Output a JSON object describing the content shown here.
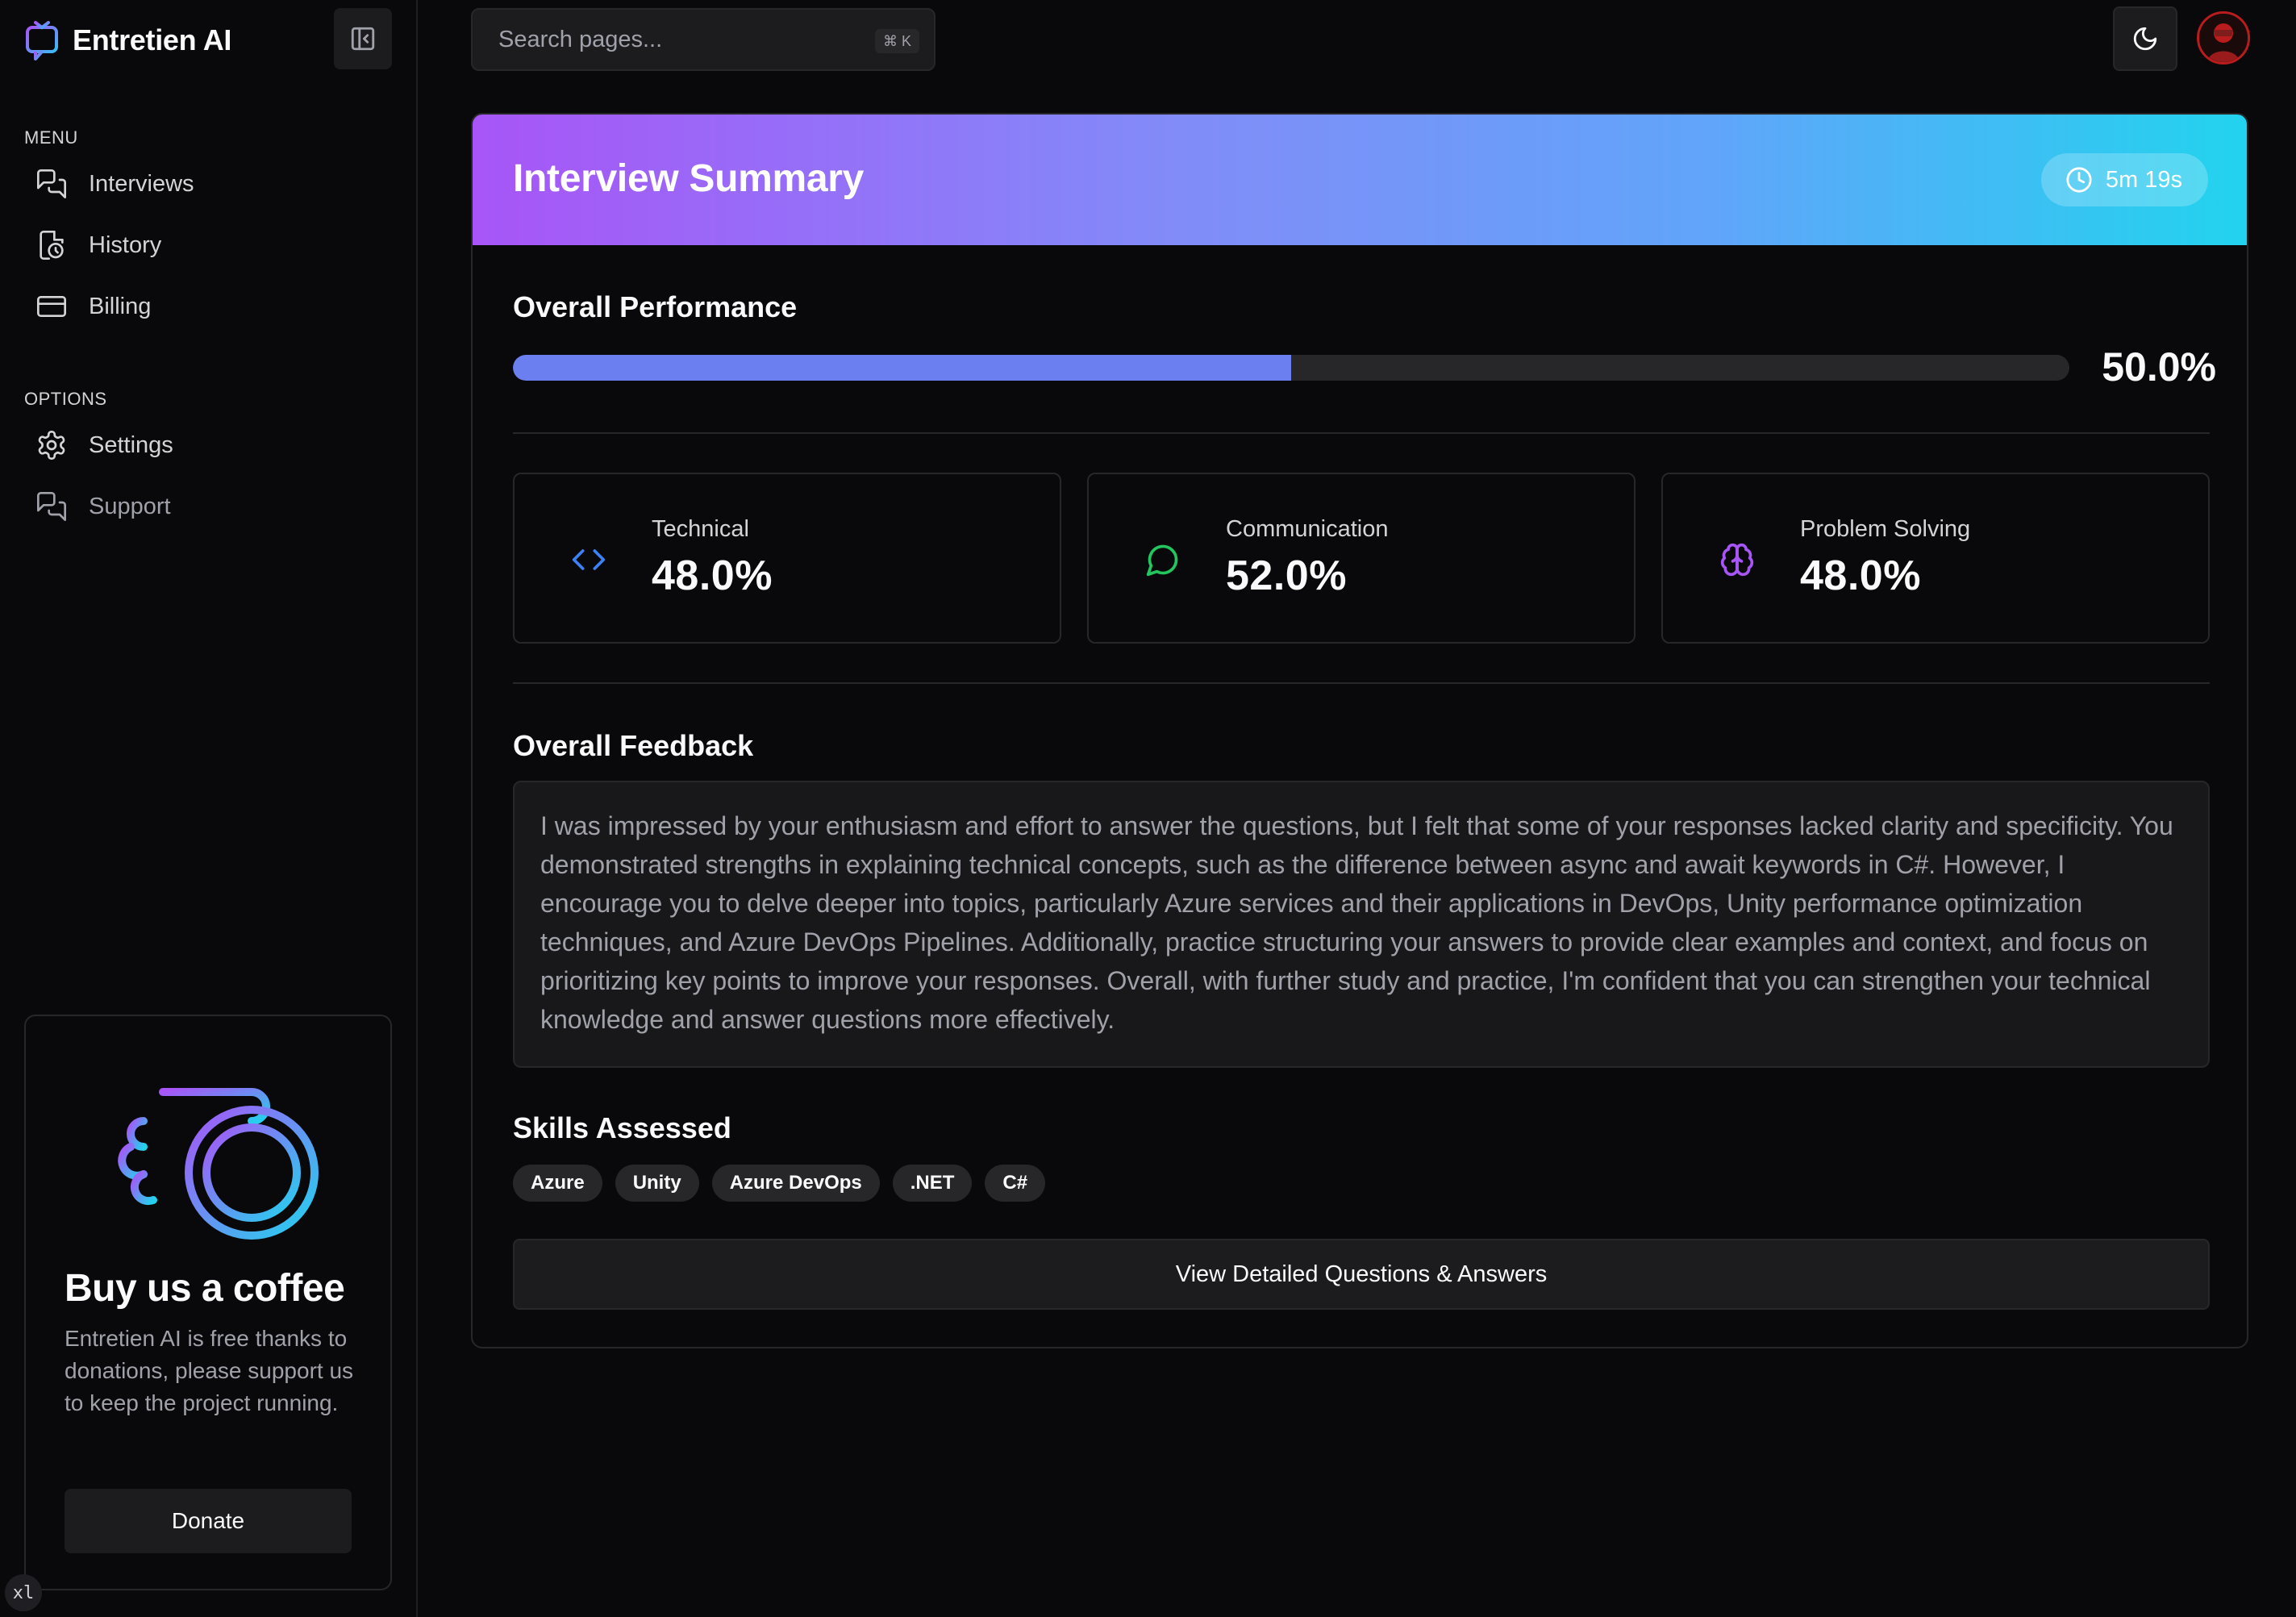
{
  "app": {
    "name": "Entretien AI"
  },
  "sidebar": {
    "menu_label": "MENU",
    "menu_items": [
      {
        "label": "Interviews",
        "icon": "chat-bubbles-icon"
      },
      {
        "label": "History",
        "icon": "history-icon"
      },
      {
        "label": "Billing",
        "icon": "credit-card-icon"
      }
    ],
    "options_label": "OPTIONS",
    "option_items": [
      {
        "label": "Settings",
        "icon": "gear-icon"
      },
      {
        "label": "Support",
        "icon": "chat-bubbles-icon"
      }
    ],
    "coffee": {
      "title": "Buy us a coffee",
      "text": "Entretien AI is free thanks to donations, please support us to keep the project running.",
      "button": "Donate"
    },
    "breakpoint_badge": "xl"
  },
  "header": {
    "search_placeholder": "Search pages...",
    "search_shortcut": "⌘ K"
  },
  "summary": {
    "title": "Interview Summary",
    "duration": "5m 19s",
    "overall_title": "Overall Performance",
    "overall_value": "50.0%",
    "overall_fraction": 0.5,
    "scores": [
      {
        "label": "Technical",
        "value": "48.0%",
        "icon": "code-icon",
        "color": "#3b82f6"
      },
      {
        "label": "Communication",
        "value": "52.0%",
        "icon": "message-circle-icon",
        "color": "#22c55e"
      },
      {
        "label": "Problem Solving",
        "value": "48.0%",
        "icon": "brain-icon",
        "color": "#a855f7"
      }
    ],
    "feedback_title": "Overall Feedback",
    "feedback": "I was impressed by your enthusiasm and effort to answer the questions, but I felt that some of your responses lacked clarity and specificity. You demonstrated strengths in explaining technical concepts, such as the difference between async and await keywords in C#. However, I encourage you to delve deeper into topics, particularly Azure services and their applications in DevOps, Unity performance optimization techniques, and Azure DevOps Pipelines. Additionally, practice structuring your answers to provide clear examples and context, and focus on prioritizing key points to improve your responses. Overall, with further study and practice, I'm confident that you can strengthen your technical knowledge and answer questions more effectively.",
    "skills_title": "Skills Assessed",
    "skills": [
      "Azure",
      "Unity",
      "Azure DevOps",
      ".NET",
      "C#"
    ],
    "details_button": "View Detailed Questions & Answers"
  },
  "colors": {
    "accent": "#6b7ff0",
    "gradient_start": "#a855f7",
    "gradient_end": "#22d3ee",
    "background": "#09090b"
  }
}
